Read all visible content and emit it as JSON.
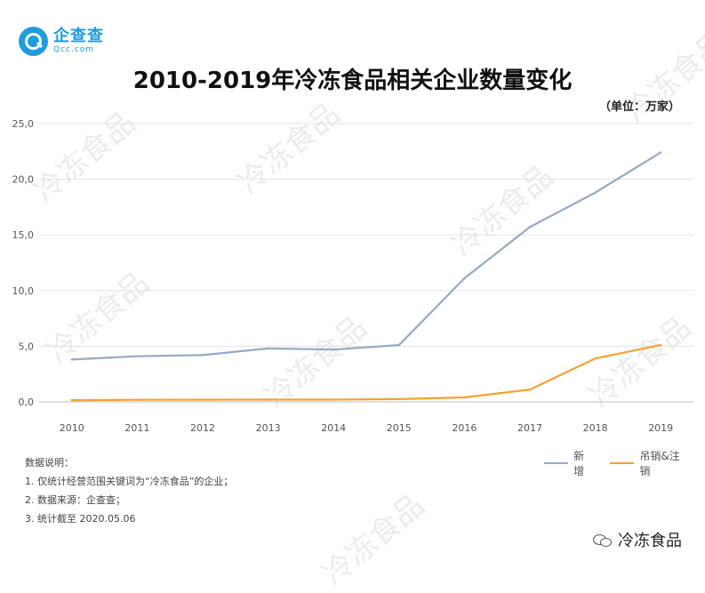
{
  "logo": {
    "name": "企查查",
    "sub": "Qcc.com"
  },
  "chart_data": {
    "type": "line",
    "title": "2010-2019年冷冻食品相关企业数量变化",
    "unit_note": "（单位：万家）",
    "categories": [
      "2010",
      "2011",
      "2012",
      "2013",
      "2014",
      "2015",
      "2016",
      "2017",
      "2018",
      "2019"
    ],
    "y_ticks": [
      "0,0",
      "5,0",
      "10,0",
      "15,0",
      "20,0",
      "25,0"
    ],
    "ylim": [
      0,
      25
    ],
    "series": [
      {
        "name": "新增",
        "color": "#97a9c3",
        "values": [
          3.8,
          4.1,
          4.2,
          4.8,
          4.7,
          5.1,
          11.1,
          15.7,
          18.8,
          22.4
        ]
      },
      {
        "name": "吊销&注销",
        "color": "#f5a031",
        "values": [
          0.15,
          0.18,
          0.19,
          0.2,
          0.2,
          0.25,
          0.4,
          1.1,
          3.9,
          5.1
        ]
      }
    ],
    "grid": "horizontal",
    "legend_position": "bottom-right"
  },
  "notes": {
    "heading": "数据说明：",
    "items": [
      "1. 仅统计经营范围关键词为“冷冻食品”的企业；",
      "2. 数据来源：企查查；",
      "3. 统计截至 2020.05.06"
    ]
  },
  "watermark": "冷冻食品",
  "footer": {
    "label": "冷冻食品",
    "icon": "wechat-icon"
  }
}
